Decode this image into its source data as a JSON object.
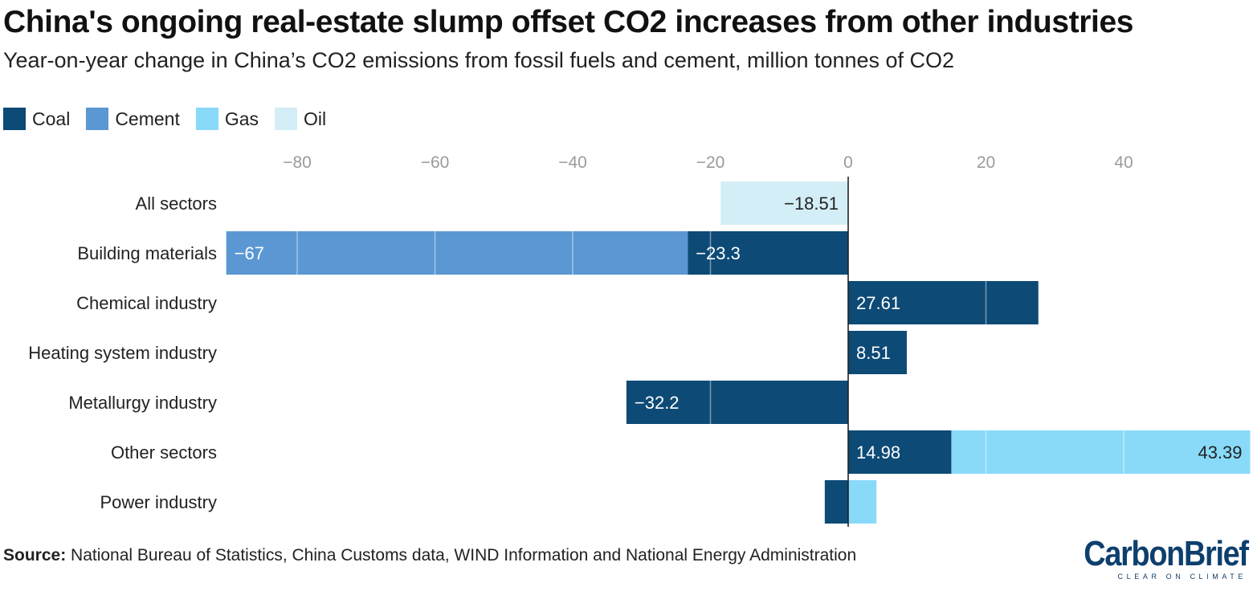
{
  "title": "China's ongoing real-estate slump offset CO2 increases from other industries",
  "subtitle": "Year-on-year change in China’s CO2 emissions from fossil fuels and cement, million tonnes of CO2",
  "colors": {
    "Coal": "#0d4a76",
    "Cement": "#5b97d3",
    "Gas": "#89daf9",
    "Oil": "#d3eef6",
    "axis": "#222222",
    "tick": "#9a9a9a"
  },
  "source": {
    "label": "Source:",
    "text": "National Bureau of Statistics, China Customs data, WIND Information and National Energy Administration"
  },
  "logo": {
    "word": "CarbonBrief",
    "tagline": "CLEAR ON CLIMATE"
  },
  "chart_data": {
    "type": "bar",
    "orientation": "horizontal",
    "stacked": true,
    "title": "China's ongoing real-estate slump offset CO2 increases from other industries",
    "xlabel": "",
    "ylabel": "",
    "xlim": [
      -90,
      58
    ],
    "xticks": [
      -80,
      -60,
      -40,
      -20,
      0,
      20,
      40
    ],
    "xtick_labels": [
      "−80",
      "−60",
      "−40",
      "−20",
      "0",
      "20",
      "40"
    ],
    "grid": false,
    "legend_position": "top-left",
    "legend": [
      "Coal",
      "Cement",
      "Gas",
      "Oil"
    ],
    "categories": [
      "All sectors",
      "Building materials",
      "Chemical industry",
      "Heating system industry",
      "Metallurgy industry",
      "Other sectors",
      "Power industry"
    ],
    "series": [
      {
        "name": "Coal",
        "values": [
          0,
          -23.3,
          27.61,
          8.51,
          -32.2,
          14.98,
          -3.4
        ]
      },
      {
        "name": "Cement",
        "values": [
          0,
          -67,
          0,
          0,
          0,
          0,
          0
        ]
      },
      {
        "name": "Gas",
        "values": [
          0,
          0,
          0,
          0,
          0,
          43.39,
          4.1
        ]
      },
      {
        "name": "Oil",
        "values": [
          -18.51,
          0,
          0,
          0,
          0,
          0,
          0
        ]
      }
    ],
    "data_labels": [
      {
        "category": "All sectors",
        "series": "Oil",
        "text": "−18.51"
      },
      {
        "category": "Building materials",
        "series": "Coal",
        "text": "−23.3"
      },
      {
        "category": "Building materials",
        "series": "Cement",
        "text": "−67"
      },
      {
        "category": "Chemical industry",
        "series": "Coal",
        "text": "27.61"
      },
      {
        "category": "Heating system industry",
        "series": "Coal",
        "text": "8.51"
      },
      {
        "category": "Metallurgy industry",
        "series": "Coal",
        "text": "−32.2"
      },
      {
        "category": "Other sectors",
        "series": "Coal",
        "text": "14.98"
      },
      {
        "category": "Other sectors",
        "series": "Gas",
        "text": "43.39"
      }
    ]
  }
}
